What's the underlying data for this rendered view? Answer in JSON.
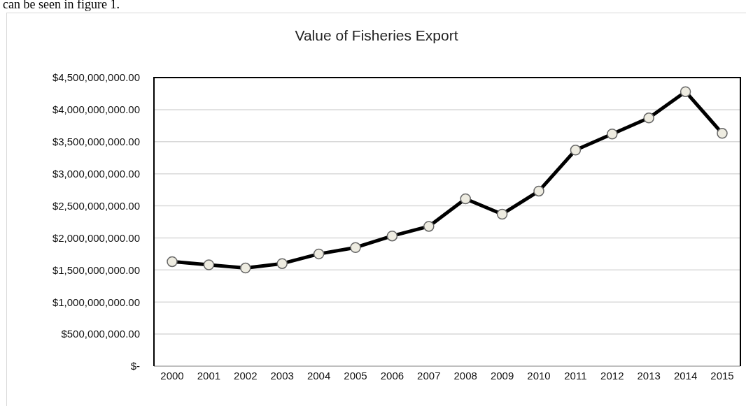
{
  "chart_data": {
    "type": "line",
    "title": "Value of Fisheries Export",
    "annotations": [
      "can be seen in figure 1."
    ],
    "categories": [
      "2000",
      "2001",
      "2002",
      "2003",
      "2004",
      "2005",
      "2006",
      "2007",
      "2008",
      "2009",
      "2010",
      "2011",
      "2012",
      "2013",
      "2014",
      "2015"
    ],
    "series": [
      {
        "color": "#000000",
        "values": [
          1630000000,
          1580000000,
          1530000000,
          1600000000,
          1750000000,
          1850000000,
          2030000000,
          2180000000,
          2610000000,
          2370000000,
          2730000000,
          3370000000,
          3620000000,
          3870000000,
          4280000000,
          3630000000
        ]
      }
    ],
    "ylim": [
      0,
      4500000000
    ],
    "yticks": [
      {
        "value": 0,
        "label": "$-"
      },
      {
        "value": 500000000,
        "label": "$500,000,000.00"
      },
      {
        "value": 1000000000,
        "label": "$1,000,000,000.00"
      },
      {
        "value": 1500000000,
        "label": "$1,500,000,000.00"
      },
      {
        "value": 2000000000,
        "label": "$2,000,000,000.00"
      },
      {
        "value": 2500000000,
        "label": "$2,500,000,000.00"
      },
      {
        "value": 3000000000,
        "label": "$3,000,000,000.00"
      },
      {
        "value": 3500000000,
        "label": "$3,500,000,000.00"
      },
      {
        "value": 4000000000,
        "label": "$4,000,000,000.00"
      },
      {
        "value": 4500000000,
        "label": "$4,500,000,000.00"
      }
    ],
    "grid": "y",
    "marker": "circle",
    "line_style": "solid",
    "legend": false
  }
}
